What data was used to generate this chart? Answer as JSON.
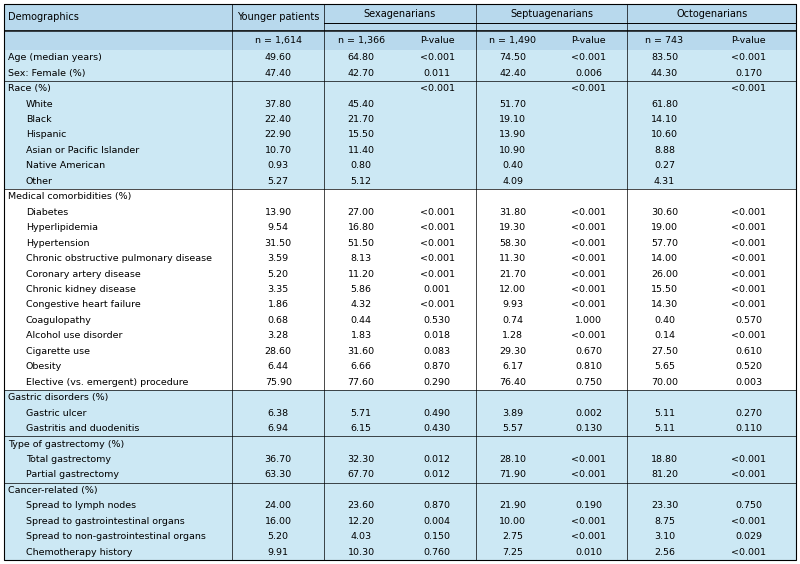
{
  "rows": [
    {
      "label": "Age (median years)",
      "indent": 0,
      "section": false,
      "bg": "light",
      "vals": [
        "49.60",
        "64.80",
        "<0.001",
        "74.50",
        "<0.001",
        "83.50",
        "<0.001"
      ]
    },
    {
      "label": "Sex: Female (%)",
      "indent": 0,
      "section": false,
      "bg": "light",
      "vals": [
        "47.40",
        "42.70",
        "0.011",
        "42.40",
        "0.006",
        "44.30",
        "0.170"
      ]
    },
    {
      "label": "Race (%)",
      "indent": 0,
      "section": true,
      "bg": "light",
      "vals": [
        "",
        "",
        "<0.001",
        "",
        "<0.001",
        "",
        "<0.001"
      ]
    },
    {
      "label": "White",
      "indent": 1,
      "section": false,
      "bg": "light",
      "vals": [
        "37.80",
        "45.40",
        "",
        "51.70",
        "",
        "61.80",
        ""
      ]
    },
    {
      "label": "Black",
      "indent": 1,
      "section": false,
      "bg": "light",
      "vals": [
        "22.40",
        "21.70",
        "",
        "19.10",
        "",
        "14.10",
        ""
      ]
    },
    {
      "label": "Hispanic",
      "indent": 1,
      "section": false,
      "bg": "light",
      "vals": [
        "22.90",
        "15.50",
        "",
        "13.90",
        "",
        "10.60",
        ""
      ]
    },
    {
      "label": "Asian or Pacific Islander",
      "indent": 1,
      "section": false,
      "bg": "light",
      "vals": [
        "10.70",
        "11.40",
        "",
        "10.90",
        "",
        "8.88",
        ""
      ]
    },
    {
      "label": "Native American",
      "indent": 1,
      "section": false,
      "bg": "light",
      "vals": [
        "0.93",
        "0.80",
        "",
        "0.40",
        "",
        "0.27",
        ""
      ]
    },
    {
      "label": "Other",
      "indent": 1,
      "section": false,
      "bg": "light",
      "vals": [
        "5.27",
        "5.12",
        "",
        "4.09",
        "",
        "4.31",
        ""
      ]
    },
    {
      "label": "Medical comorbidities (%)",
      "indent": 0,
      "section": true,
      "bg": "white",
      "vals": [
        "",
        "",
        "",
        "",
        "",
        "",
        ""
      ]
    },
    {
      "label": "Diabetes",
      "indent": 1,
      "section": false,
      "bg": "white",
      "vals": [
        "13.90",
        "27.00",
        "<0.001",
        "31.80",
        "<0.001",
        "30.60",
        "<0.001"
      ]
    },
    {
      "label": "Hyperlipidemia",
      "indent": 1,
      "section": false,
      "bg": "white",
      "vals": [
        "9.54",
        "16.80",
        "<0.001",
        "19.30",
        "<0.001",
        "19.00",
        "<0.001"
      ]
    },
    {
      "label": "Hypertension",
      "indent": 1,
      "section": false,
      "bg": "white",
      "vals": [
        "31.50",
        "51.50",
        "<0.001",
        "58.30",
        "<0.001",
        "57.70",
        "<0.001"
      ]
    },
    {
      "label": "Chronic obstructive pulmonary disease",
      "indent": 1,
      "section": false,
      "bg": "white",
      "vals": [
        "3.59",
        "8.13",
        "<0.001",
        "11.30",
        "<0.001",
        "14.00",
        "<0.001"
      ]
    },
    {
      "label": "Coronary artery disease",
      "indent": 1,
      "section": false,
      "bg": "white",
      "vals": [
        "5.20",
        "11.20",
        "<0.001",
        "21.70",
        "<0.001",
        "26.00",
        "<0.001"
      ]
    },
    {
      "label": "Chronic kidney disease",
      "indent": 1,
      "section": false,
      "bg": "white",
      "vals": [
        "3.35",
        "5.86",
        "0.001",
        "12.00",
        "<0.001",
        "15.50",
        "<0.001"
      ]
    },
    {
      "label": "Congestive heart failure",
      "indent": 1,
      "section": false,
      "bg": "white",
      "vals": [
        "1.86",
        "4.32",
        "<0.001",
        "9.93",
        "<0.001",
        "14.30",
        "<0.001"
      ]
    },
    {
      "label": "Coagulopathy",
      "indent": 1,
      "section": false,
      "bg": "white",
      "vals": [
        "0.68",
        "0.44",
        "0.530",
        "0.74",
        "1.000",
        "0.40",
        "0.570"
      ]
    },
    {
      "label": "Alcohol use disorder",
      "indent": 1,
      "section": false,
      "bg": "white",
      "vals": [
        "3.28",
        "1.83",
        "0.018",
        "1.28",
        "<0.001",
        "0.14",
        "<0.001"
      ]
    },
    {
      "label": "Cigarette use",
      "indent": 1,
      "section": false,
      "bg": "white",
      "vals": [
        "28.60",
        "31.60",
        "0.083",
        "29.30",
        "0.670",
        "27.50",
        "0.610"
      ]
    },
    {
      "label": "Obesity",
      "indent": 1,
      "section": false,
      "bg": "white",
      "vals": [
        "6.44",
        "6.66",
        "0.870",
        "6.17",
        "0.810",
        "5.65",
        "0.520"
      ]
    },
    {
      "label": "Elective (vs. emergent) procedure",
      "indent": 1,
      "section": false,
      "bg": "white",
      "vals": [
        "75.90",
        "77.60",
        "0.290",
        "76.40",
        "0.750",
        "70.00",
        "0.003"
      ]
    },
    {
      "label": "Gastric disorders (%)",
      "indent": 0,
      "section": true,
      "bg": "light",
      "vals": [
        "",
        "",
        "",
        "",
        "",
        "",
        ""
      ]
    },
    {
      "label": "Gastric ulcer",
      "indent": 1,
      "section": false,
      "bg": "light",
      "vals": [
        "6.38",
        "5.71",
        "0.490",
        "3.89",
        "0.002",
        "5.11",
        "0.270"
      ]
    },
    {
      "label": "Gastritis and duodenitis",
      "indent": 1,
      "section": false,
      "bg": "light",
      "vals": [
        "6.94",
        "6.15",
        "0.430",
        "5.57",
        "0.130",
        "5.11",
        "0.110"
      ]
    },
    {
      "label": "Type of gastrectomy (%)",
      "indent": 0,
      "section": true,
      "bg": "light",
      "vals": [
        "",
        "",
        "",
        "",
        "",
        "",
        ""
      ]
    },
    {
      "label": "Total gastrectomy",
      "indent": 1,
      "section": false,
      "bg": "light",
      "vals": [
        "36.70",
        "32.30",
        "0.012",
        "28.10",
        "<0.001",
        "18.80",
        "<0.001"
      ]
    },
    {
      "label": "Partial gastrectomy",
      "indent": 1,
      "section": false,
      "bg": "light",
      "vals": [
        "63.30",
        "67.70",
        "0.012",
        "71.90",
        "<0.001",
        "81.20",
        "<0.001"
      ]
    },
    {
      "label": "Cancer-related (%)",
      "indent": 0,
      "section": true,
      "bg": "light",
      "vals": [
        "",
        "",
        "",
        "",
        "",
        "",
        ""
      ]
    },
    {
      "label": "Spread to lymph nodes",
      "indent": 1,
      "section": false,
      "bg": "light",
      "vals": [
        "24.00",
        "23.60",
        "0.870",
        "21.90",
        "0.190",
        "23.30",
        "0.750"
      ]
    },
    {
      "label": "Spread to gastrointestinal organs",
      "indent": 1,
      "section": false,
      "bg": "light",
      "vals": [
        "16.00",
        "12.20",
        "0.004",
        "10.00",
        "<0.001",
        "8.75",
        "<0.001"
      ]
    },
    {
      "label": "Spread to non-gastrointestinal organs",
      "indent": 1,
      "section": false,
      "bg": "light",
      "vals": [
        "5.20",
        "4.03",
        "0.150",
        "2.75",
        "<0.001",
        "3.10",
        "0.029"
      ]
    },
    {
      "label": "Chemotherapy history",
      "indent": 1,
      "section": false,
      "bg": "light",
      "vals": [
        "9.91",
        "10.30",
        "0.760",
        "7.25",
        "0.010",
        "2.56",
        "<0.001"
      ]
    }
  ],
  "light_bg": "#cce8f4",
  "white_bg": "#ffffff",
  "header_bg": "#b8d9ed",
  "subheaders": [
    "",
    "n = 1,614",
    "n = 1,366",
    "P-value",
    "n = 1,490",
    "P-value",
    "n = 743",
    "P-value"
  ],
  "col_group_labels": [
    "Demographics",
    "Younger patients",
    "Sexagenarians",
    "Septuagenarians",
    "Octogenarians"
  ],
  "font_size": 6.8,
  "header_font_size": 7.0
}
